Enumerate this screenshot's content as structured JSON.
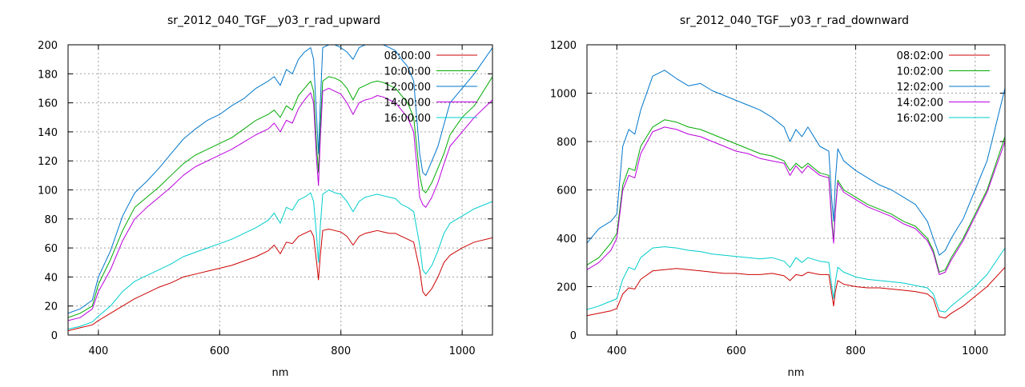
{
  "chart_data": [
    {
      "type": "line",
      "title": "sr_2012_040_TGF__y03_r_rad_upward",
      "xlabel": "nm",
      "ylabel": "",
      "xlim": [
        350,
        1050
      ],
      "ylim": [
        0,
        200
      ],
      "xticks": [
        400,
        600,
        800,
        1000
      ],
      "yticks": [
        0,
        20,
        40,
        60,
        80,
        100,
        120,
        140,
        160,
        180,
        200
      ],
      "grid": true,
      "legend_position": "top-right",
      "series": [
        {
          "name": "08:00:00",
          "color": "#cc0000",
          "x": [
            350,
            370,
            390,
            400,
            420,
            440,
            460,
            480,
            500,
            520,
            540,
            560,
            580,
            600,
            620,
            640,
            660,
            680,
            690,
            700,
            710,
            720,
            730,
            740,
            750,
            755,
            760,
            763,
            766,
            770,
            780,
            790,
            800,
            810,
            820,
            830,
            840,
            850,
            860,
            870,
            880,
            890,
            900,
            910,
            920,
            930,
            935,
            940,
            950,
            960,
            970,
            980,
            1000,
            1020,
            1050
          ],
          "y": [
            3,
            5,
            7,
            10,
            15,
            20,
            25,
            29,
            33,
            36,
            40,
            42,
            44,
            46,
            48,
            51,
            54,
            58,
            62,
            56,
            64,
            63,
            68,
            70,
            72,
            68,
            50,
            38,
            55,
            72,
            73,
            72,
            71,
            68,
            62,
            68,
            70,
            71,
            72,
            71,
            70,
            70,
            68,
            66,
            64,
            45,
            30,
            27,
            32,
            40,
            50,
            55,
            60,
            64,
            67
          ]
        },
        {
          "name": "10:00:00",
          "color": "#00aa00",
          "x": [
            350,
            370,
            390,
            400,
            420,
            440,
            460,
            480,
            500,
            520,
            540,
            560,
            580,
            600,
            620,
            640,
            660,
            680,
            690,
            700,
            710,
            720,
            730,
            740,
            750,
            755,
            760,
            763,
            766,
            770,
            780,
            790,
            800,
            810,
            820,
            830,
            840,
            850,
            860,
            870,
            880,
            890,
            900,
            910,
            920,
            930,
            935,
            940,
            950,
            960,
            970,
            980,
            1000,
            1020,
            1050
          ],
          "y": [
            12,
            15,
            20,
            35,
            52,
            72,
            88,
            95,
            102,
            110,
            118,
            124,
            128,
            132,
            136,
            142,
            148,
            152,
            155,
            150,
            158,
            155,
            165,
            170,
            175,
            168,
            130,
            112,
            145,
            175,
            178,
            177,
            175,
            170,
            162,
            170,
            172,
            174,
            175,
            174,
            172,
            170,
            165,
            160,
            150,
            110,
            100,
            98,
            105,
            115,
            125,
            138,
            150,
            158,
            178
          ]
        },
        {
          "name": "12:00:00",
          "color": "#0077cc",
          "x": [
            350,
            370,
            390,
            400,
            420,
            440,
            460,
            480,
            500,
            520,
            540,
            560,
            580,
            600,
            620,
            640,
            660,
            680,
            690,
            700,
            710,
            720,
            730,
            740,
            750,
            755,
            760,
            763,
            766,
            770,
            780,
            790,
            800,
            810,
            820,
            830,
            840,
            850,
            860,
            870,
            880,
            890,
            900,
            910,
            920,
            930,
            935,
            940,
            950,
            960,
            970,
            980,
            1000,
            1020,
            1050
          ],
          "y": [
            15,
            18,
            24,
            40,
            58,
            82,
            98,
            106,
            115,
            125,
            135,
            142,
            148,
            152,
            158,
            163,
            170,
            175,
            178,
            172,
            183,
            180,
            190,
            195,
            198,
            190,
            150,
            125,
            160,
            198,
            200,
            200,
            198,
            195,
            190,
            198,
            200,
            200,
            200,
            200,
            198,
            196,
            190,
            185,
            175,
            125,
            112,
            110,
            120,
            130,
            145,
            160,
            170,
            180,
            198
          ]
        },
        {
          "name": "14:00:00",
          "color": "#bb00dd",
          "x": [
            350,
            370,
            390,
            400,
            420,
            440,
            460,
            480,
            500,
            520,
            540,
            560,
            580,
            600,
            620,
            640,
            660,
            680,
            690,
            700,
            710,
            720,
            730,
            740,
            750,
            755,
            760,
            763,
            766,
            770,
            780,
            790,
            800,
            810,
            820,
            830,
            840,
            850,
            860,
            870,
            880,
            890,
            900,
            910,
            920,
            930,
            935,
            940,
            950,
            960,
            970,
            980,
            1000,
            1020,
            1050
          ],
          "y": [
            10,
            12,
            18,
            30,
            45,
            65,
            80,
            88,
            95,
            102,
            110,
            116,
            120,
            124,
            128,
            133,
            138,
            142,
            146,
            140,
            148,
            146,
            156,
            162,
            167,
            160,
            120,
            103,
            135,
            168,
            170,
            168,
            166,
            160,
            152,
            160,
            162,
            163,
            165,
            164,
            162,
            160,
            155,
            150,
            140,
            95,
            90,
            88,
            95,
            105,
            118,
            130,
            140,
            150,
            162
          ]
        },
        {
          "name": "16:00:00",
          "color": "#00cccc",
          "x": [
            350,
            370,
            390,
            400,
            420,
            440,
            460,
            480,
            500,
            520,
            540,
            560,
            580,
            600,
            620,
            640,
            660,
            680,
            690,
            700,
            710,
            720,
            730,
            740,
            750,
            755,
            760,
            763,
            766,
            770,
            780,
            790,
            800,
            810,
            820,
            830,
            840,
            850,
            860,
            870,
            880,
            890,
            900,
            910,
            920,
            930,
            935,
            940,
            950,
            960,
            970,
            980,
            1000,
            1020,
            1050
          ],
          "y": [
            4,
            6,
            9,
            13,
            20,
            30,
            37,
            41,
            45,
            49,
            54,
            57,
            60,
            63,
            66,
            70,
            74,
            79,
            84,
            77,
            88,
            86,
            93,
            95,
            98,
            92,
            68,
            50,
            75,
            97,
            100,
            98,
            97,
            92,
            85,
            92,
            95,
            96,
            97,
            96,
            95,
            94,
            90,
            88,
            85,
            62,
            45,
            42,
            48,
            58,
            70,
            77,
            82,
            87,
            92
          ]
        }
      ]
    },
    {
      "type": "line",
      "title": "sr_2012_040_TGF__y03_r_rad_downward",
      "xlabel": "nm",
      "ylabel": "",
      "xlim": [
        350,
        1050
      ],
      "ylim": [
        0,
        1200
      ],
      "xticks": [
        400,
        600,
        800,
        1000
      ],
      "yticks": [
        0,
        200,
        400,
        600,
        800,
        1000,
        1200
      ],
      "grid": true,
      "legend_position": "top-right",
      "series": [
        {
          "name": "08:02:00",
          "color": "#cc0000",
          "x": [
            350,
            370,
            390,
            400,
            410,
            420,
            430,
            440,
            460,
            480,
            500,
            520,
            540,
            560,
            580,
            600,
            620,
            640,
            660,
            680,
            690,
            700,
            710,
            720,
            740,
            755,
            760,
            763,
            766,
            770,
            780,
            800,
            820,
            840,
            860,
            880,
            900,
            920,
            930,
            940,
            950,
            960,
            980,
            1000,
            1020,
            1050
          ],
          "y": [
            80,
            90,
            100,
            110,
            170,
            195,
            190,
            230,
            265,
            270,
            275,
            270,
            265,
            260,
            255,
            255,
            250,
            250,
            255,
            245,
            225,
            250,
            245,
            260,
            250,
            250,
            170,
            120,
            180,
            225,
            210,
            200,
            195,
            195,
            190,
            185,
            180,
            170,
            150,
            75,
            70,
            90,
            120,
            160,
            200,
            280
          ]
        },
        {
          "name": "10:02:00",
          "color": "#00aa00",
          "x": [
            350,
            370,
            390,
            400,
            410,
            420,
            430,
            440,
            460,
            480,
            500,
            520,
            540,
            560,
            580,
            600,
            620,
            640,
            660,
            680,
            690,
            700,
            710,
            720,
            740,
            755,
            760,
            763,
            766,
            770,
            780,
            800,
            820,
            840,
            860,
            880,
            900,
            920,
            930,
            940,
            950,
            960,
            980,
            1000,
            1020,
            1050
          ],
          "y": [
            290,
            320,
            380,
            420,
            620,
            690,
            680,
            780,
            860,
            890,
            880,
            860,
            850,
            830,
            810,
            790,
            770,
            750,
            740,
            720,
            680,
            710,
            690,
            710,
            670,
            660,
            480,
            390,
            520,
            640,
            600,
            570,
            540,
            520,
            500,
            470,
            450,
            400,
            350,
            260,
            270,
            320,
            400,
            500,
            600,
            820
          ]
        },
        {
          "name": "12:02:00",
          "color": "#0077cc",
          "x": [
            350,
            370,
            390,
            400,
            410,
            420,
            430,
            440,
            460,
            480,
            500,
            520,
            540,
            560,
            580,
            600,
            620,
            640,
            660,
            680,
            690,
            700,
            710,
            720,
            740,
            755,
            760,
            763,
            766,
            770,
            780,
            800,
            820,
            840,
            860,
            880,
            900,
            920,
            930,
            940,
            950,
            960,
            980,
            1000,
            1020,
            1050
          ],
          "y": [
            380,
            440,
            470,
            500,
            780,
            850,
            830,
            930,
            1070,
            1095,
            1060,
            1030,
            1040,
            1010,
            990,
            970,
            950,
            930,
            900,
            860,
            800,
            850,
            820,
            860,
            780,
            760,
            560,
            470,
            640,
            770,
            720,
            680,
            650,
            620,
            600,
            570,
            540,
            470,
            400,
            330,
            350,
            400,
            480,
            600,
            720,
            1020
          ]
        },
        {
          "name": "14:02:00",
          "color": "#bb00dd",
          "x": [
            350,
            370,
            390,
            400,
            410,
            420,
            430,
            440,
            460,
            480,
            500,
            520,
            540,
            560,
            580,
            600,
            620,
            640,
            660,
            680,
            690,
            700,
            710,
            720,
            740,
            755,
            760,
            763,
            766,
            770,
            780,
            800,
            820,
            840,
            860,
            880,
            900,
            920,
            930,
            940,
            950,
            960,
            980,
            1000,
            1020,
            1050
          ],
          "y": [
            270,
            300,
            350,
            400,
            600,
            660,
            650,
            750,
            840,
            860,
            850,
            830,
            820,
            800,
            780,
            760,
            750,
            730,
            720,
            710,
            660,
            700,
            670,
            700,
            660,
            650,
            460,
            380,
            510,
            630,
            590,
            560,
            530,
            510,
            490,
            460,
            440,
            390,
            340,
            250,
            260,
            310,
            390,
            490,
            590,
            800
          ]
        },
        {
          "name": "16:02:00",
          "color": "#00cccc",
          "x": [
            350,
            370,
            390,
            400,
            410,
            420,
            430,
            440,
            460,
            480,
            500,
            520,
            540,
            560,
            580,
            600,
            620,
            640,
            660,
            680,
            690,
            700,
            710,
            720,
            740,
            755,
            760,
            763,
            766,
            770,
            780,
            800,
            820,
            840,
            860,
            880,
            900,
            920,
            930,
            940,
            950,
            960,
            980,
            1000,
            1020,
            1050
          ],
          "y": [
            105,
            120,
            140,
            150,
            230,
            280,
            270,
            320,
            360,
            365,
            360,
            350,
            345,
            335,
            330,
            325,
            320,
            315,
            320,
            305,
            280,
            320,
            300,
            320,
            305,
            300,
            200,
            150,
            220,
            280,
            260,
            240,
            230,
            225,
            220,
            215,
            205,
            195,
            170,
            100,
            95,
            120,
            160,
            200,
            250,
            360
          ]
        }
      ]
    }
  ]
}
